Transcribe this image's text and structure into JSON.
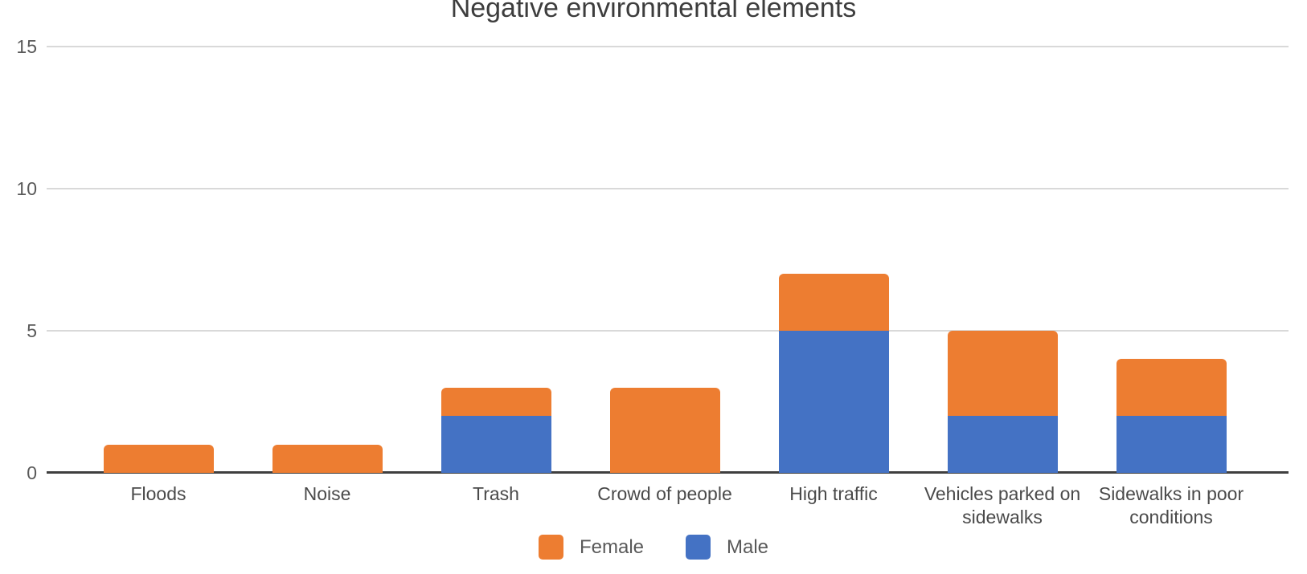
{
  "title_block": {
    "text": "Negative environmental elements"
  },
  "y_axis": {
    "tick_labels": [
      "0",
      "5",
      "10",
      "15"
    ]
  },
  "legend": {
    "items": [
      {
        "label": "Female",
        "color": "#ED7D31"
      },
      {
        "label": "Male",
        "color": "#4472C4"
      }
    ]
  },
  "colors": {
    "female": "#ED7D31",
    "male": "#4472C4",
    "gridline": "#D9D9D9",
    "axis_line": "#3F3F3F",
    "tick_text": "#595959",
    "title_text": "#3D3D3D"
  },
  "chart_data": {
    "type": "bar",
    "stacked": true,
    "title": "Negative environmental elements",
    "categories": [
      "Floods",
      "Noise",
      "Trash",
      "Crowd of people",
      "High traffic",
      "Vehicles parked on sidewalks",
      "Sidewalks in poor conditions"
    ],
    "series": [
      {
        "name": "Male",
        "color": "#4472C4",
        "values": [
          0,
          0,
          2,
          0,
          5,
          2,
          2
        ]
      },
      {
        "name": "Female",
        "color": "#ED7D31",
        "values": [
          1,
          1,
          1,
          3,
          2,
          3,
          2
        ]
      }
    ],
    "totals": [
      1,
      1,
      3,
      3,
      7,
      5,
      4
    ],
    "xlabel": "",
    "ylabel": "",
    "ylim": [
      0,
      15
    ],
    "yticks": [
      0,
      5,
      10,
      15
    ],
    "grid": true,
    "legend_position": "bottom"
  }
}
